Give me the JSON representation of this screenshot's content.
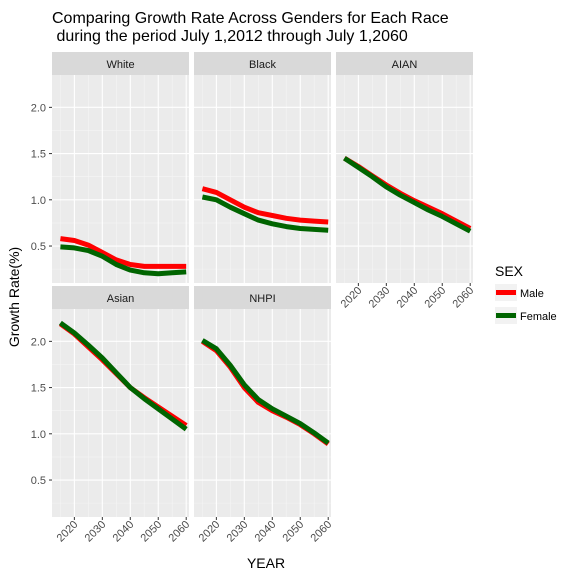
{
  "chart_data": {
    "type": "line",
    "title_line1": "Comparing Growth Rate Across Genders for Each Race",
    "title_line2": " during the period July 1,2012 through July 1,2060",
    "xlabel": "YEAR",
    "ylabel": "Growth Rate(%)",
    "xlim": [
      2012,
      2061
    ],
    "ylim": [
      0.1,
      2.35
    ],
    "x_ticks": [
      2020,
      2030,
      2040,
      2050,
      2060
    ],
    "y_ticks": [
      0.5,
      1.0,
      1.5,
      2.0
    ],
    "y_tick_labels": [
      "0.5",
      "1.0",
      "1.5",
      "2.0"
    ],
    "grid": true,
    "legend": {
      "title": "SEX",
      "placement": "right",
      "entries": [
        {
          "name": "Male",
          "color": "#ff0000"
        },
        {
          "name": "Female",
          "color": "#006400"
        }
      ]
    },
    "x": [
      2015,
      2020,
      2025,
      2030,
      2035,
      2040,
      2045,
      2050,
      2055,
      2060
    ],
    "panels": [
      {
        "name": "White",
        "series": [
          {
            "name": "Male",
            "values": [
              0.58,
              0.56,
              0.51,
              0.43,
              0.35,
              0.3,
              0.28,
              0.28,
              0.28,
              0.28
            ]
          },
          {
            "name": "Female",
            "values": [
              0.49,
              0.48,
              0.45,
              0.39,
              0.3,
              0.24,
              0.21,
              0.2,
              0.21,
              0.22
            ]
          }
        ]
      },
      {
        "name": "Black",
        "series": [
          {
            "name": "Male",
            "values": [
              1.12,
              1.08,
              1.0,
              0.92,
              0.86,
              0.83,
              0.8,
              0.78,
              0.77,
              0.76
            ]
          },
          {
            "name": "Female",
            "values": [
              1.03,
              1.0,
              0.92,
              0.85,
              0.78,
              0.74,
              0.71,
              0.69,
              0.68,
              0.67
            ]
          }
        ]
      },
      {
        "name": "AIAN",
        "series": [
          {
            "name": "Male",
            "values": [
              1.45,
              1.36,
              1.26,
              1.16,
              1.07,
              0.99,
              0.92,
              0.85,
              0.77,
              0.69
            ]
          },
          {
            "name": "Female",
            "values": [
              1.45,
              1.35,
              1.25,
              1.14,
              1.05,
              0.97,
              0.89,
              0.82,
              0.74,
              0.66
            ]
          }
        ]
      },
      {
        "name": "Asian",
        "series": [
          {
            "name": "Male",
            "values": [
              2.19,
              2.08,
              1.94,
              1.8,
              1.65,
              1.5,
              1.39,
              1.29,
              1.19,
              1.09
            ]
          },
          {
            "name": "Female",
            "values": [
              2.2,
              2.09,
              1.96,
              1.82,
              1.66,
              1.5,
              1.38,
              1.27,
              1.16,
              1.05
            ]
          }
        ]
      },
      {
        "name": "NHPI",
        "series": [
          {
            "name": "Male",
            "values": [
              2.0,
              1.9,
              1.72,
              1.5,
              1.34,
              1.25,
              1.18,
              1.1,
              1.0,
              0.89
            ]
          },
          {
            "name": "Female",
            "values": [
              2.01,
              1.92,
              1.74,
              1.53,
              1.37,
              1.27,
              1.19,
              1.11,
              1.01,
              0.9
            ]
          }
        ]
      }
    ]
  }
}
